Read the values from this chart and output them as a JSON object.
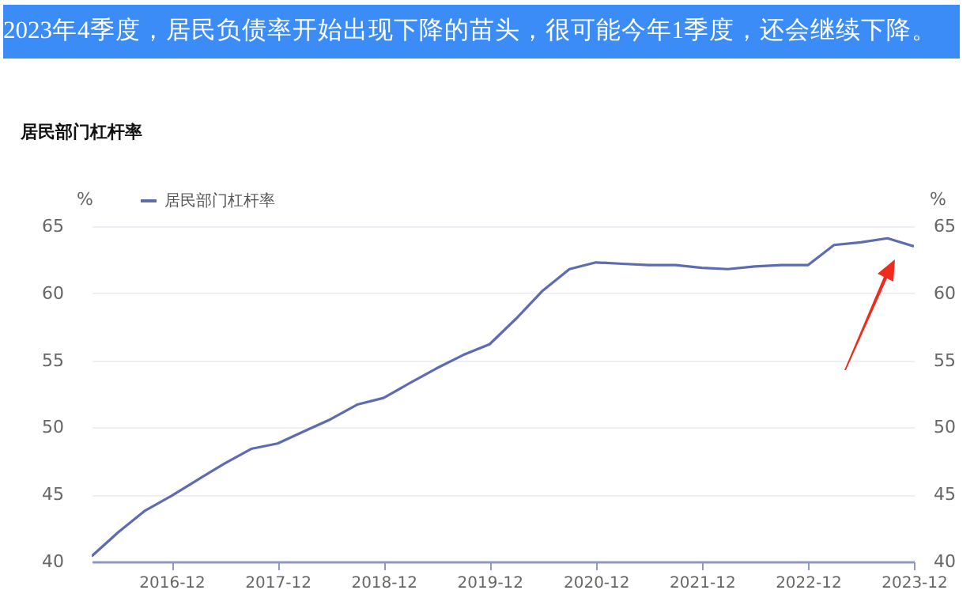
{
  "chart_data": {
    "type": "line",
    "title": "2023年4季度，居民负债率开始出现下降的苗头，很可能今年1季度，还会继续下降。",
    "subtitle": "居民部门杠杆率",
    "ylabel": "%",
    "y2label": "%",
    "x": [
      "2016-03",
      "2016-06",
      "2016-09",
      "2016-12",
      "2017-03",
      "2017-06",
      "2017-09",
      "2017-12",
      "2018-03",
      "2018-06",
      "2018-09",
      "2018-12",
      "2019-03",
      "2019-06",
      "2019-09",
      "2019-12",
      "2020-03",
      "2020-06",
      "2020-09",
      "2020-12",
      "2021-03",
      "2021-06",
      "2021-09",
      "2021-12",
      "2022-03",
      "2022-06",
      "2022-09",
      "2022-12",
      "2023-03",
      "2023-06",
      "2023-09",
      "2023-12"
    ],
    "series": [
      {
        "name": "居民部门杠杆率",
        "color": "#5d6bb0",
        "values": [
          40.4,
          42.2,
          43.8,
          44.9,
          46.1,
          47.3,
          48.4,
          48.8,
          49.7,
          50.6,
          51.7,
          52.2,
          53.3,
          54.4,
          55.4,
          56.2,
          58.1,
          60.2,
          61.8,
          62.3,
          62.2,
          62.1,
          62.1,
          61.9,
          61.8,
          62.0,
          62.1,
          62.1,
          63.6,
          63.8,
          64.1,
          63.5
        ]
      }
    ],
    "xlim": [
      "2016-03",
      "2023-12"
    ],
    "xticks": [
      "2016-12",
      "2017-12",
      "2018-12",
      "2019-12",
      "2020-12",
      "2021-12",
      "2022-12",
      "2023-12"
    ],
    "ylim": [
      40,
      65
    ],
    "yticks": [
      40,
      45,
      50,
      55,
      60,
      65
    ],
    "y2lim": [
      40,
      65
    ],
    "y2ticks": [
      40,
      45,
      50,
      55,
      60,
      65
    ],
    "grid": "y",
    "legend": "top left",
    "marker": "none",
    "line_style": "solid"
  }
}
